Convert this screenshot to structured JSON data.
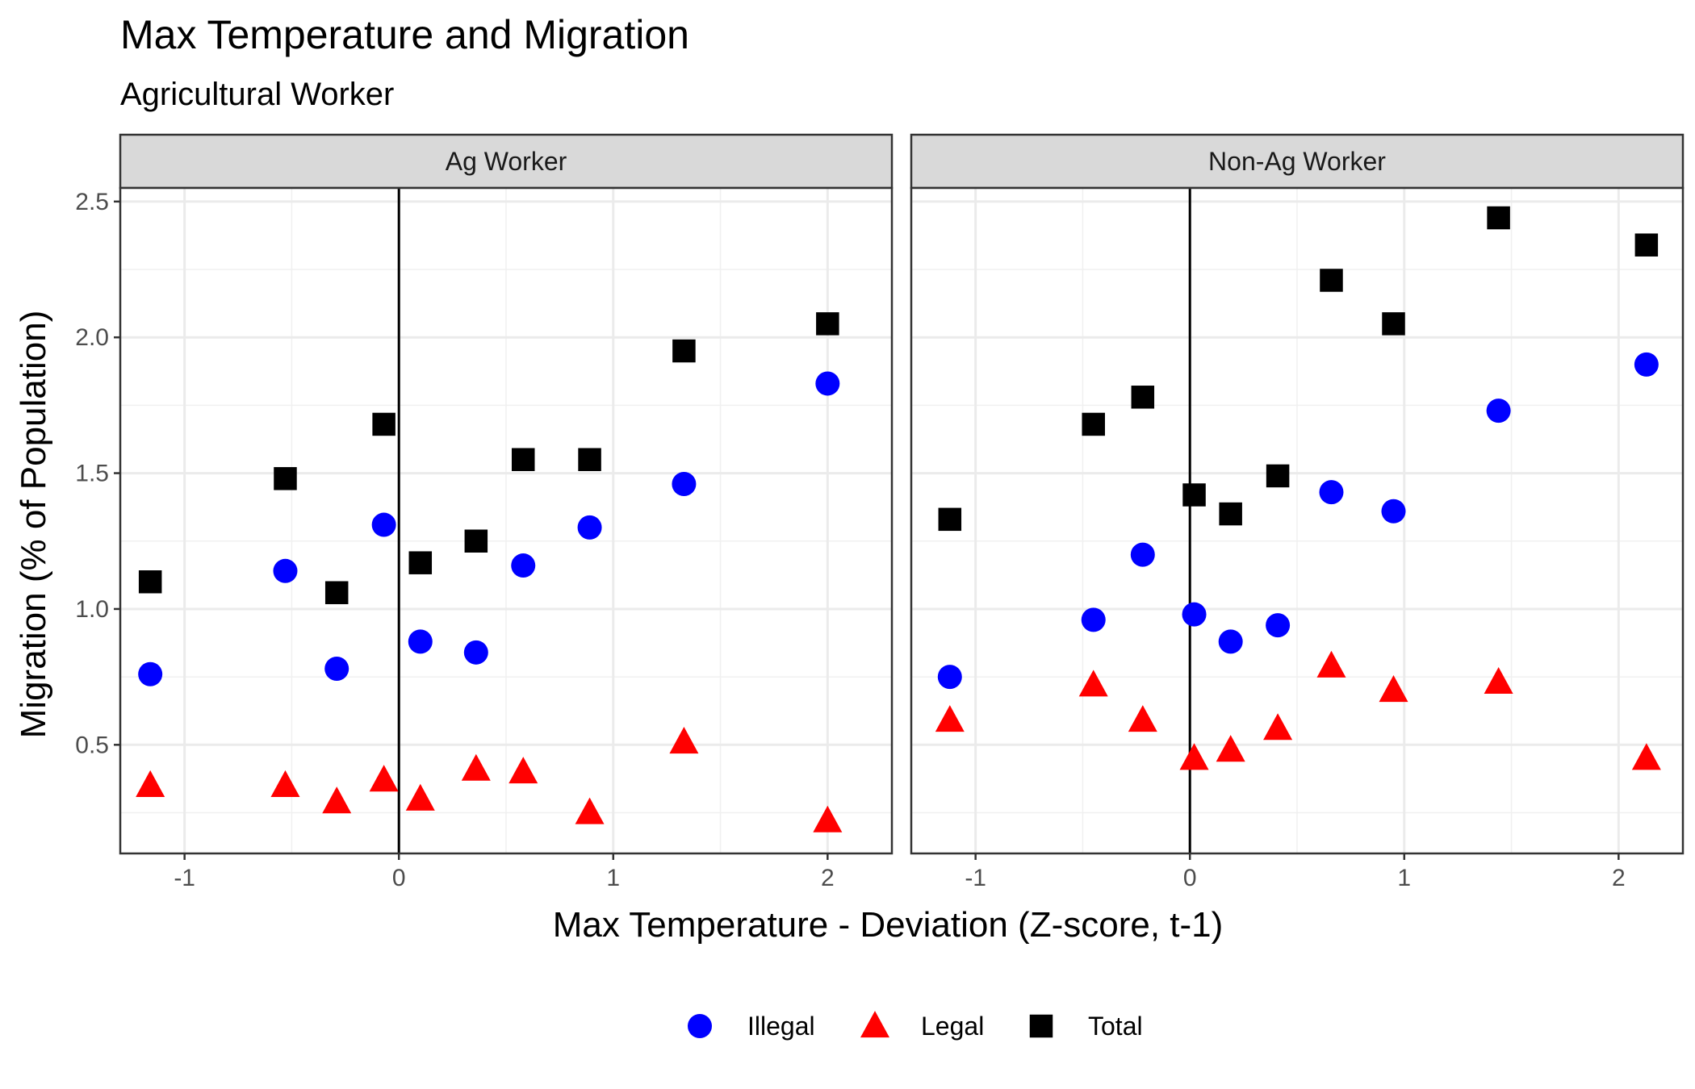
{
  "chart_data": {
    "type": "scatter",
    "title": "Max Temperature and Migration",
    "subtitle": "Agricultural Worker",
    "xlabel": "Max Temperature - Deviation (Z-score, t-1)",
    "ylabel": "Migration (% of Population)",
    "xlim": [
      -1.3,
      2.3
    ],
    "ylim": [
      0.1,
      2.55
    ],
    "x_ticks": [
      -1,
      0,
      1,
      2
    ],
    "x_tick_labels": [
      "-1",
      "0",
      "1",
      "2"
    ],
    "y_ticks": [
      0.5,
      1.0,
      1.5,
      2.0,
      2.5
    ],
    "y_tick_labels": [
      "0.5",
      "1.0",
      "1.5",
      "2.0",
      "2.5"
    ],
    "vline_x": 0,
    "grid": true,
    "legend_position": "bottom",
    "colors": {
      "Illegal": "#0000ff",
      "Legal": "#ff0000",
      "Total": "#000000"
    },
    "markers": {
      "Illegal": "circle",
      "Legal": "triangle",
      "Total": "square"
    },
    "legend": [
      "Illegal",
      "Legal",
      "Total"
    ],
    "panels": [
      {
        "name": "Ag Worker",
        "series": [
          {
            "name": "Illegal",
            "x": [
              -1.16,
              -0.53,
              -0.29,
              -0.07,
              0.1,
              0.36,
              0.58,
              0.89,
              1.33,
              2.0
            ],
            "y": [
              0.76,
              1.14,
              0.78,
              1.31,
              0.88,
              0.84,
              1.16,
              1.3,
              1.46,
              1.83
            ]
          },
          {
            "name": "Legal",
            "x": [
              -1.16,
              -0.53,
              -0.29,
              -0.07,
              0.1,
              0.36,
              0.58,
              0.89,
              1.33,
              2.0
            ],
            "y": [
              0.35,
              0.35,
              0.29,
              0.37,
              0.3,
              0.41,
              0.4,
              0.25,
              0.51,
              0.22
            ]
          },
          {
            "name": "Total",
            "x": [
              -1.16,
              -0.53,
              -0.29,
              -0.07,
              0.1,
              0.36,
              0.58,
              0.89,
              1.33,
              2.0
            ],
            "y": [
              1.1,
              1.48,
              1.06,
              1.68,
              1.17,
              1.25,
              1.55,
              1.55,
              1.95,
              2.05
            ]
          }
        ]
      },
      {
        "name": "Non-Ag Worker",
        "series": [
          {
            "name": "Illegal",
            "x": [
              -1.12,
              -0.45,
              -0.22,
              0.02,
              0.19,
              0.41,
              0.66,
              0.95,
              1.44,
              2.13
            ],
            "y": [
              0.75,
              0.96,
              1.2,
              0.98,
              0.88,
              0.94,
              1.43,
              1.36,
              1.73,
              1.9
            ]
          },
          {
            "name": "Legal",
            "x": [
              -1.12,
              -0.45,
              -0.22,
              0.02,
              0.19,
              0.41,
              0.66,
              0.95,
              1.44,
              2.13
            ],
            "y": [
              0.59,
              0.72,
              0.59,
              0.45,
              0.48,
              0.56,
              0.79,
              0.7,
              0.73,
              0.45
            ]
          },
          {
            "name": "Total",
            "x": [
              -1.12,
              -0.45,
              -0.22,
              0.02,
              0.19,
              0.41,
              0.66,
              0.95,
              1.44,
              2.13
            ],
            "y": [
              1.33,
              1.68,
              1.78,
              1.42,
              1.35,
              1.49,
              2.21,
              2.05,
              2.44,
              2.34
            ]
          }
        ]
      }
    ]
  }
}
